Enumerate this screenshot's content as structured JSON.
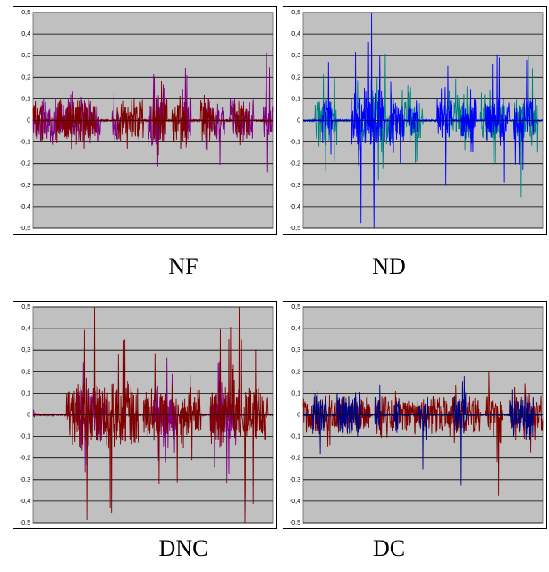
{
  "captions": [
    "NF",
    "ND",
    "DNC",
    "DC"
  ],
  "chart_data": [
    {
      "type": "line",
      "title": "NF",
      "ylim": [
        -0.5,
        0.5
      ],
      "yticks": [
        "0,5",
        "0,4",
        "0,3",
        "0,2",
        "0,1",
        "0",
        "-0,1",
        "-0,2",
        "-0,3",
        "-0,4",
        "-0,5"
      ],
      "xtick_labels": [
        "",
        "",
        "",
        "",
        "",
        "",
        ""
      ],
      "grid": true,
      "plot_bg": "#c0c0c0",
      "series": [
        {
          "color": "#800080",
          "bursts": [
            {
              "start": 0.0,
              "end": 0.28,
              "amp": 0.08,
              "noise": 0.06
            },
            {
              "start": 0.33,
              "end": 0.36,
              "amp": 0.12,
              "noise": 0.06
            },
            {
              "start": 0.48,
              "end": 0.55,
              "amp": 0.22,
              "noise": 0.08
            },
            {
              "start": 0.62,
              "end": 0.66,
              "amp": 0.2,
              "noise": 0.06
            },
            {
              "start": 0.72,
              "end": 0.8,
              "amp": 0.22,
              "noise": 0.06
            },
            {
              "start": 0.82,
              "end": 0.92,
              "amp": 0.1,
              "noise": 0.06
            },
            {
              "start": 0.96,
              "end": 1.0,
              "amp": 0.3,
              "noise": 0.05
            }
          ]
        },
        {
          "color": "#800000",
          "bursts": [
            {
              "start": 0.0,
              "end": 0.04,
              "amp": 0.1,
              "noise": 0.06
            },
            {
              "start": 0.1,
              "end": 0.26,
              "amp": 0.1,
              "noise": 0.06
            },
            {
              "start": 0.35,
              "end": 0.46,
              "amp": 0.08,
              "noise": 0.06
            },
            {
              "start": 0.5,
              "end": 0.56,
              "amp": 0.3,
              "noise": 0.06
            },
            {
              "start": 0.58,
              "end": 0.64,
              "amp": 0.1,
              "noise": 0.06
            },
            {
              "start": 0.7,
              "end": 0.76,
              "amp": 0.1,
              "noise": 0.06
            },
            {
              "start": 0.84,
              "end": 0.9,
              "amp": 0.12,
              "noise": 0.06
            }
          ]
        }
      ]
    },
    {
      "type": "line",
      "title": "ND",
      "ylim": [
        -0.5,
        0.5
      ],
      "yticks": [
        "0,5",
        "0,4",
        "0,3",
        "0,2",
        "0,1",
        "0",
        "-0,1",
        "-0,2",
        "-0,3",
        "-0,4",
        "-0,5"
      ],
      "xtick_labels": [
        "",
        "",
        "",
        "",
        "",
        "",
        ""
      ],
      "grid": true,
      "plot_bg": "#c0c0c0",
      "series": [
        {
          "color": "#008080",
          "bursts": [
            {
              "start": 0.05,
              "end": 0.14,
              "amp": 0.25,
              "noise": 0.07
            },
            {
              "start": 0.22,
              "end": 0.26,
              "amp": 0.22,
              "noise": 0.06
            },
            {
              "start": 0.28,
              "end": 0.38,
              "amp": 0.28,
              "noise": 0.07
            },
            {
              "start": 0.4,
              "end": 0.5,
              "amp": 0.2,
              "noise": 0.06
            },
            {
              "start": 0.6,
              "end": 0.7,
              "amp": 0.18,
              "noise": 0.06
            },
            {
              "start": 0.74,
              "end": 0.84,
              "amp": 0.16,
              "noise": 0.06
            },
            {
              "start": 0.88,
              "end": 0.98,
              "amp": 0.38,
              "noise": 0.06
            }
          ]
        },
        {
          "color": "#0000ff",
          "bursts": [
            {
              "start": 0.08,
              "end": 0.12,
              "amp": 0.28,
              "noise": 0.06
            },
            {
              "start": 0.2,
              "end": 0.34,
              "amp": 0.48,
              "noise": 0.08
            },
            {
              "start": 0.36,
              "end": 0.42,
              "amp": 0.3,
              "noise": 0.06
            },
            {
              "start": 0.44,
              "end": 0.48,
              "amp": 0.08,
              "noise": 0.04
            },
            {
              "start": 0.56,
              "end": 0.62,
              "amp": 0.25,
              "noise": 0.06
            },
            {
              "start": 0.66,
              "end": 0.72,
              "amp": 0.14,
              "noise": 0.06
            },
            {
              "start": 0.76,
              "end": 0.86,
              "amp": 0.34,
              "noise": 0.06
            },
            {
              "start": 0.88,
              "end": 0.96,
              "amp": 0.38,
              "noise": 0.06
            }
          ]
        }
      ]
    },
    {
      "type": "line",
      "title": "DNC",
      "ylim": [
        -0.5,
        0.5
      ],
      "yticks": [
        "0,5",
        "0,4",
        "0,3",
        "0,2",
        "0,1",
        "0",
        "-0,1",
        "-0,2",
        "-0,3",
        "-0,4",
        "-0,5"
      ],
      "xtick_labels": [
        "",
        "",
        "",
        "",
        "",
        "",
        ""
      ],
      "grid": true,
      "plot_bg": "#c0c0c0",
      "series": [
        {
          "color": "#800080",
          "bursts": [
            {
              "start": 0.0,
              "end": 0.01,
              "amp": 0.5,
              "noise": 0.02
            },
            {
              "start": 0.18,
              "end": 0.3,
              "amp": 0.3,
              "noise": 0.07
            },
            {
              "start": 0.5,
              "end": 0.6,
              "amp": 0.22,
              "noise": 0.06
            },
            {
              "start": 0.74,
              "end": 0.86,
              "amp": 0.3,
              "noise": 0.06
            }
          ]
        },
        {
          "color": "#800000",
          "bursts": [
            {
              "start": 0.14,
              "end": 0.44,
              "amp": 0.48,
              "noise": 0.09
            },
            {
              "start": 0.46,
              "end": 0.56,
              "amp": 0.3,
              "noise": 0.07
            },
            {
              "start": 0.58,
              "end": 0.7,
              "amp": 0.38,
              "noise": 0.07
            },
            {
              "start": 0.74,
              "end": 0.98,
              "amp": 0.48,
              "noise": 0.08
            }
          ]
        }
      ]
    },
    {
      "type": "line",
      "title": "DC",
      "ylim": [
        -0.5,
        0.5
      ],
      "yticks": [
        "0,5",
        "0,4",
        "0,3",
        "0,2",
        "0,1",
        "0",
        "-0,1",
        "-0,2",
        "-0,3",
        "-0,4",
        "-0,5"
      ],
      "xtick_labels": [
        "",
        "",
        "",
        "",
        "",
        "",
        ""
      ],
      "grid": true,
      "plot_bg": "#c0c0c0",
      "series": [
        {
          "color": "#800000",
          "bursts": [
            {
              "start": 0.0,
              "end": 0.28,
              "amp": 0.12,
              "noise": 0.05
            },
            {
              "start": 0.3,
              "end": 0.74,
              "amp": 0.12,
              "noise": 0.05
            },
            {
              "start": 0.76,
              "end": 0.83,
              "amp": 0.5,
              "noise": 0.05
            },
            {
              "start": 0.86,
              "end": 1.0,
              "amp": 0.14,
              "noise": 0.05
            }
          ]
        },
        {
          "color": "#000080",
          "bursts": [
            {
              "start": 0.04,
              "end": 0.1,
              "amp": 0.28,
              "noise": 0.06
            },
            {
              "start": 0.14,
              "end": 0.24,
              "amp": 0.14,
              "noise": 0.06
            },
            {
              "start": 0.3,
              "end": 0.32,
              "amp": 0.5,
              "noise": 0.06
            },
            {
              "start": 0.38,
              "end": 0.4,
              "amp": 0.48,
              "noise": 0.05
            },
            {
              "start": 0.48,
              "end": 0.52,
              "amp": 0.3,
              "noise": 0.06
            },
            {
              "start": 0.63,
              "end": 0.68,
              "amp": 0.28,
              "noise": 0.06
            },
            {
              "start": 0.86,
              "end": 0.96,
              "amp": 0.3,
              "noise": 0.06
            }
          ]
        }
      ]
    }
  ]
}
